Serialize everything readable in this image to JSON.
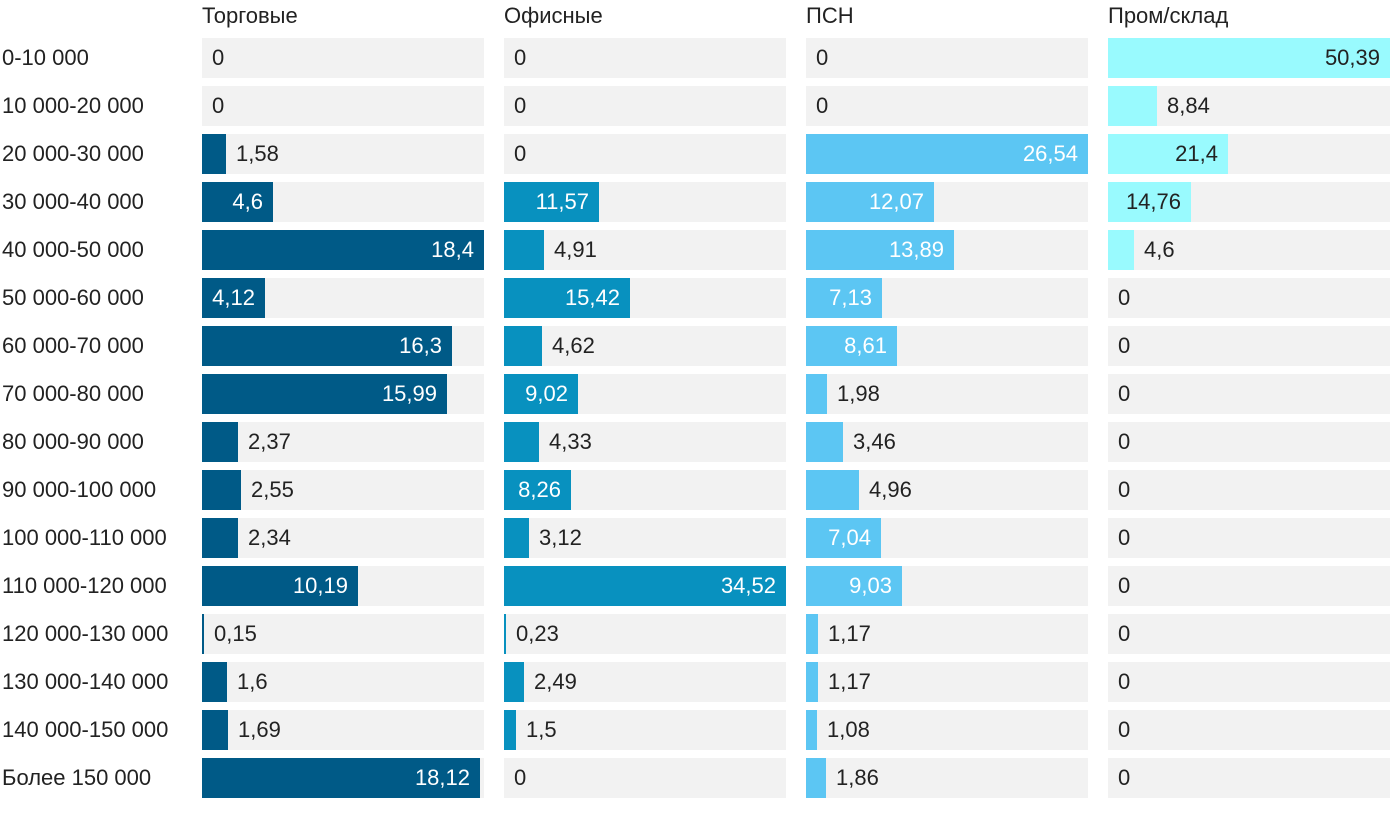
{
  "chart_data": {
    "type": "bar",
    "orientation": "horizontal",
    "layout": "small-multiples",
    "categories": [
      "0-10 000",
      "10 000-20 000",
      "20 000-30 000",
      "30 000-40 000",
      "40 000-50 000",
      "50 000-60 000",
      "60 000-70 000",
      "70 000-80 000",
      "80 000-90 000",
      "90 000-100 000",
      "100 000-110 000",
      "110 000-120 000",
      "120 000-130 000",
      "130 000-140 000",
      "140 000-150 000",
      "Более 150 000"
    ],
    "series": [
      {
        "name": "Торговые",
        "color": "#005a87",
        "values": [
          0,
          0,
          1.58,
          4.6,
          18.4,
          4.12,
          16.3,
          15.99,
          2.37,
          2.55,
          2.34,
          10.19,
          0.15,
          1.6,
          1.69,
          18.12
        ],
        "labels": [
          "0",
          "0",
          "1,58",
          "4,6",
          "18,4",
          "4,12",
          "16,3",
          "15,99",
          "2,37",
          "2,55",
          "2,34",
          "10,19",
          "0,15",
          "1,6",
          "1,69",
          "18,12"
        ]
      },
      {
        "name": "Офисные",
        "color": "#0891bf",
        "values": [
          0,
          0,
          0,
          11.57,
          4.91,
          15.42,
          4.62,
          9.02,
          4.33,
          8.26,
          3.12,
          34.52,
          0.23,
          2.49,
          1.5,
          0
        ],
        "labels": [
          "0",
          "0",
          "0",
          "11,57",
          "4,91",
          "15,42",
          "4,62",
          "9,02",
          "4,33",
          "8,26",
          "3,12",
          "34,52",
          "0,23",
          "2,49",
          "1,5",
          "0"
        ]
      },
      {
        "name": "ПСН",
        "color": "#5cc6f3",
        "values": [
          0,
          0,
          26.54,
          12.07,
          13.89,
          7.13,
          8.61,
          1.98,
          3.46,
          4.96,
          7.04,
          9.03,
          1.17,
          1.17,
          1.08,
          1.86
        ],
        "labels": [
          "0",
          "0",
          "26,54",
          "12,07",
          "13,89",
          "7,13",
          "8,61",
          "1,98",
          "3,46",
          "4,96",
          "7,04",
          "9,03",
          "1,17",
          "1,17",
          "1,08",
          "1,86"
        ]
      },
      {
        "name": "Пром/склад",
        "color": "#99fafe",
        "values": [
          50.39,
          8.84,
          21.4,
          14.76,
          4.6,
          0,
          0,
          0,
          0,
          0,
          0,
          0,
          0,
          0,
          0,
          0
        ],
        "labels": [
          "50,39",
          "8,84",
          "21,4",
          "14,76",
          "4,6",
          "0",
          "0",
          "0",
          "0",
          "0",
          "0",
          "0",
          "0",
          "0",
          "0",
          "0"
        ]
      }
    ],
    "title": "",
    "xlabel": "",
    "ylabel": "",
    "grid": false,
    "legend": "none"
  }
}
